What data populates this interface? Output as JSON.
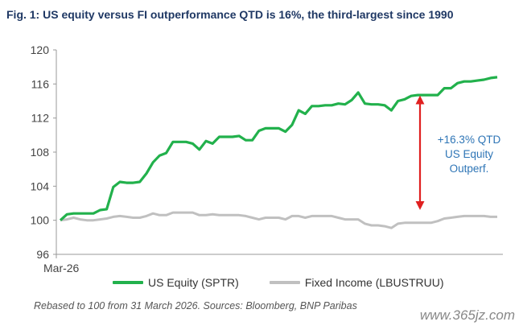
{
  "title": "Fig. 1: US equity versus FI outperformance QTD is 16%, the third-largest since 1990",
  "source_note": "Rebased to 100 from 31 March 2026. Sources: Bloomberg, BNP Paribas",
  "watermark": "www.365jz.com",
  "colors": {
    "equity": "#22b14c",
    "fixed_income": "#c0c0c0",
    "arrow": "#e02020",
    "annotation": "#2e75b6",
    "title": "#1f3864"
  },
  "chart_data": {
    "type": "line",
    "title": "Fig. 1: US equity versus FI outperformance QTD is 16%, the third-largest since 1990",
    "xlabel": "",
    "ylabel": "",
    "x_tick_labels": [
      "Mar-26"
    ],
    "ylim": [
      96,
      120
    ],
    "y_ticks": [
      96,
      100,
      104,
      108,
      112,
      116,
      120
    ],
    "grid": false,
    "legend_position": "bottom",
    "series": [
      {
        "name": "US Equity (SPTR)",
        "values": [
          100.0,
          100.7,
          100.8,
          100.8,
          100.8,
          100.8,
          101.2,
          101.3,
          103.9,
          104.5,
          104.4,
          104.4,
          104.5,
          105.5,
          106.8,
          107.6,
          107.9,
          109.2,
          109.2,
          109.2,
          109.0,
          108.3,
          109.3,
          109.0,
          109.8,
          109.8,
          109.8,
          109.9,
          109.4,
          109.4,
          110.5,
          110.8,
          110.8,
          110.8,
          110.4,
          111.2,
          112.9,
          112.5,
          113.4,
          113.4,
          113.5,
          113.5,
          113.7,
          113.6,
          114.1,
          115.0,
          113.7,
          113.6,
          113.6,
          113.5,
          112.9,
          114.0,
          114.2,
          114.6,
          114.7,
          114.7,
          114.7,
          114.7,
          115.5,
          115.5,
          116.1,
          116.3,
          116.3,
          116.4,
          116.5,
          116.7,
          116.8
        ]
      },
      {
        "name": "Fixed Income (LBUSTRUU)",
        "values": [
          100.0,
          100.1,
          100.3,
          100.1,
          100.0,
          100.0,
          100.1,
          100.2,
          100.4,
          100.5,
          100.4,
          100.3,
          100.3,
          100.5,
          100.8,
          100.6,
          100.6,
          100.9,
          100.9,
          100.9,
          100.9,
          100.6,
          100.6,
          100.7,
          100.6,
          100.6,
          100.6,
          100.6,
          100.5,
          100.3,
          100.1,
          100.3,
          100.3,
          100.3,
          100.1,
          100.5,
          100.5,
          100.3,
          100.5,
          100.5,
          100.5,
          100.5,
          100.3,
          100.1,
          100.1,
          100.1,
          99.6,
          99.4,
          99.4,
          99.3,
          99.1,
          99.6,
          99.7,
          99.7,
          99.7,
          99.7,
          99.7,
          99.9,
          100.2,
          100.3,
          100.4,
          100.5,
          100.5,
          100.5,
          100.5,
          100.4,
          100.4
        ]
      }
    ],
    "annotation": {
      "lines": [
        "+16.3% QTD",
        "US Equity",
        "Outperf."
      ],
      "arrow_from": 100.4,
      "arrow_to": 114.7
    }
  }
}
